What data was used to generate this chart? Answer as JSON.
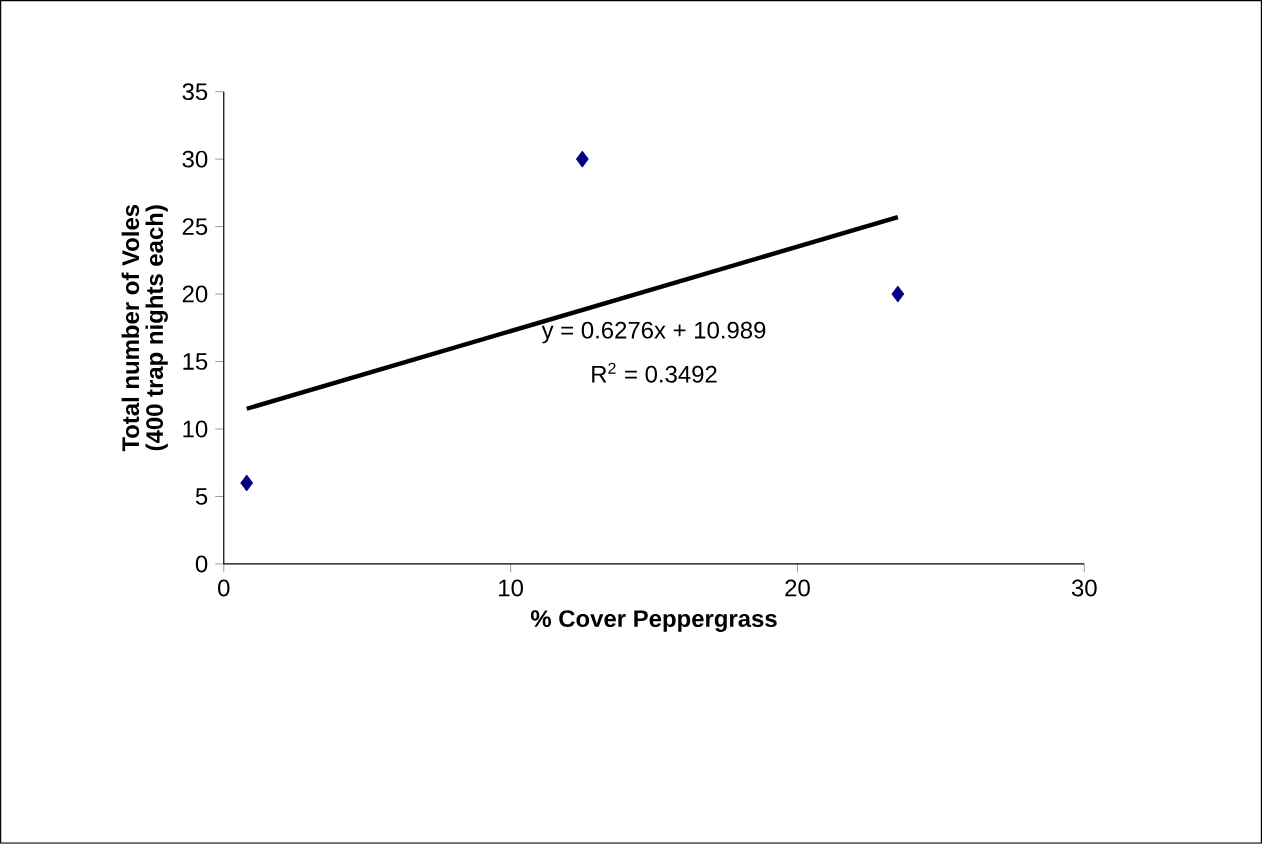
{
  "chart_data": {
    "type": "scatter",
    "xlabel": "% Cover Peppergrass",
    "ylabel": "Total number of Voles\n(400 trap nights each)",
    "xlim": [
      0,
      30
    ],
    "xticks": [
      0,
      10,
      20,
      30
    ],
    "ylim": [
      0,
      35
    ],
    "yticks": [
      0,
      5,
      10,
      15,
      20,
      25,
      30,
      35
    ],
    "marker": "diamond",
    "series": [
      {
        "color": "#000080",
        "x": [
          0.8,
          12.5,
          23.5
        ],
        "values": [
          6,
          30,
          20
        ]
      },
      {
        "type": "line",
        "marker": "none",
        "color": "#000000",
        "x": [
          0.8,
          23.5
        ],
        "values": [
          11.5,
          25.7
        ]
      }
    ],
    "annotations": [
      "y = 0.6276x + 10.989",
      "R$^{2}$ = 0.3492"
    ]
  }
}
